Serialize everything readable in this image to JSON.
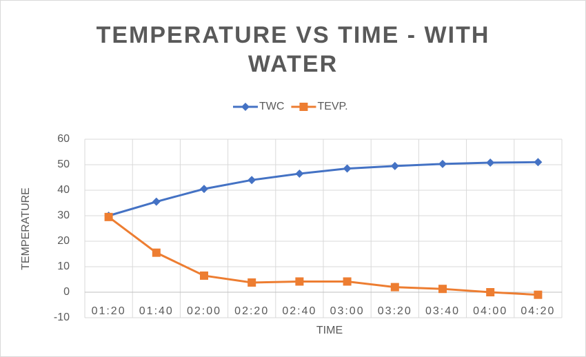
{
  "chart_data": {
    "type": "line",
    "title": "TEMPERATURE VS TIME -  WITH WATER",
    "x_label": "TIME",
    "y_label": "TEMPERATURE",
    "categories": [
      "01:20",
      "01:40",
      "02:00",
      "02:20",
      "02:40",
      "03:00",
      "03:20",
      "03:40",
      "04:00",
      "04:20"
    ],
    "series": [
      {
        "name": "TWC",
        "color": "#4472c4",
        "marker": "diamond",
        "values": [
          30,
          35.5,
          40.5,
          44,
          46.5,
          48.5,
          49.5,
          50.3,
          50.8,
          51
        ]
      },
      {
        "name": "TEVP.",
        "color": "#ed7d31",
        "marker": "square",
        "values": [
          29.5,
          15.5,
          6.5,
          3.8,
          4.2,
          4.2,
          2,
          1.3,
          0,
          -1
        ]
      }
    ],
    "ylim": [
      -10,
      60
    ],
    "yticks": [
      -10,
      0,
      10,
      20,
      30,
      40,
      50,
      60
    ],
    "grid": true,
    "legend": "top"
  }
}
